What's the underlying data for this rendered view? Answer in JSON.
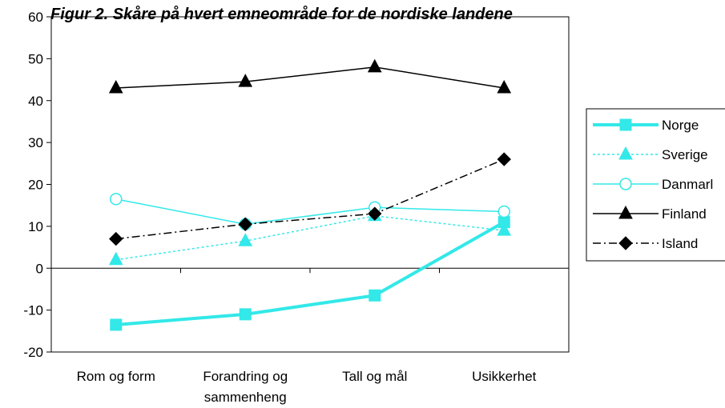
{
  "chart_data": {
    "type": "line",
    "title": "Figur 2. Skåre på hvert emneområde for de nordiske landene",
    "categories": [
      "Rom og form",
      "Forandring og sammenheng",
      "Tall og mål",
      "Usikkerhet"
    ],
    "category_lines": [
      [
        "Rom og form"
      ],
      [
        "Forandring og",
        "sammenheng"
      ],
      [
        "Tall og mål"
      ],
      [
        "Usikkerhet"
      ]
    ],
    "ylim": [
      -20,
      60
    ],
    "yticks": [
      -20,
      -10,
      0,
      10,
      20,
      30,
      40,
      50,
      60
    ],
    "legend_position": "right",
    "series": [
      {
        "name": "Norge",
        "values": [
          -13.5,
          -11,
          -6.5,
          11
        ],
        "color": "#33e8e8",
        "dash": "solid",
        "width": 4,
        "marker": "square"
      },
      {
        "name": "Sverige",
        "values": [
          2,
          6.5,
          12.5,
          9
        ],
        "color": "#33e8e8",
        "dash": "dotted",
        "width": 1.5,
        "marker": "triangle"
      },
      {
        "name": "Danmarl",
        "values": [
          16.5,
          10.5,
          14.5,
          13.5
        ],
        "color": "#33e8e8",
        "dash": "solid",
        "width": 1.5,
        "marker": "circle-open"
      },
      {
        "name": "Finland",
        "values": [
          43,
          44.5,
          48,
          43
        ],
        "color": "#000000",
        "dash": "solid",
        "width": 1.5,
        "marker": "triangle"
      },
      {
        "name": "Island",
        "values": [
          7,
          10.5,
          13,
          26
        ],
        "color": "#000000",
        "dash": "dashdot",
        "width": 1.5,
        "marker": "diamond"
      }
    ]
  }
}
